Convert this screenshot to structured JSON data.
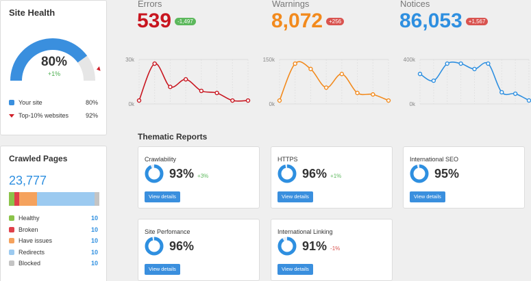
{
  "site_health": {
    "title": "Site Health",
    "score": {
      "value": 80,
      "label": "80%"
    },
    "change": "+1%",
    "legend": [
      {
        "name": "Your site",
        "value": {
          "value": 80,
          "label": "80%"
        },
        "color": "#3a8fde"
      },
      {
        "name": "Top-10% websites",
        "value": {
          "value": 92,
          "label": "92%"
        },
        "color": "#d0202a"
      }
    ]
  },
  "crawled_pages": {
    "title": "Crawled Pages",
    "total": "23,777",
    "items": [
      {
        "name": "Healthy",
        "count": 10,
        "share": 6,
        "color": "#8bc34a"
      },
      {
        "name": "Broken",
        "count": 10,
        "share": 5,
        "color": "#e0404a"
      },
      {
        "name": "Have issues",
        "count": 10,
        "share": 20,
        "color": "#f5a25d"
      },
      {
        "name": "Redirects",
        "count": 10,
        "share": 64,
        "color": "#9ccaf0"
      },
      {
        "name": "Blocked",
        "count": 10,
        "share": 5,
        "color": "#c4c4c4"
      }
    ]
  },
  "metrics": [
    {
      "label": "Errors",
      "value": "539",
      "change": "-1,497",
      "change_color": "#5cb85c",
      "color": "#c8151f",
      "chart": {
        "type": "line",
        "ylim": [
          0,
          30000
        ],
        "yticks": [
          {
            "value": 0,
            "label": "0k"
          },
          {
            "value": 30000,
            "label": "30k"
          }
        ],
        "values": [
          2300,
          27200,
          11500,
          16600,
          8800,
          7400,
          2300,
          2300
        ]
      }
    },
    {
      "label": "Warnings",
      "value": "8,072",
      "change": "+256",
      "change_color": "#d9534f",
      "color": "#f28a1d",
      "chart": {
        "type": "line",
        "ylim": [
          0,
          150000
        ],
        "yticks": [
          {
            "value": 0,
            "label": "0k"
          },
          {
            "value": 150000,
            "label": "150k"
          }
        ],
        "values": [
          11500,
          136000,
          118000,
          55000,
          101000,
          37000,
          32000,
          11500
        ]
      }
    },
    {
      "label": "Notices",
      "value": "86,053",
      "change": "+1,567",
      "change_color": "#d9534f",
      "color": "#2e8fe0",
      "chart": {
        "type": "line",
        "ylim": [
          0,
          400000
        ],
        "yticks": [
          {
            "value": 0,
            "label": "0k"
          },
          {
            "value": 400000,
            "label": "400k"
          }
        ],
        "values": [
          270000,
          209000,
          363000,
          363000,
          314000,
          363000,
          105000,
          92000,
          31000
        ]
      }
    }
  ],
  "thematic_reports": {
    "title": "Thematic Reports",
    "button_label": "View details",
    "items": [
      {
        "name": "Crawlability",
        "score": {
          "value": 93,
          "label": "93%"
        },
        "change": "+3%",
        "change_color": "#5cb85c"
      },
      {
        "name": "HTTPS",
        "score": {
          "value": 96,
          "label": "96%"
        },
        "change": "+1%",
        "change_color": "#5cb85c"
      },
      {
        "name": "International SEO",
        "score": {
          "value": 95,
          "label": "95%"
        }
      },
      {
        "name": "Site Perfomance",
        "score": {
          "value": 96,
          "label": "96%"
        }
      },
      {
        "name": "International Linking",
        "score": {
          "value": 91,
          "label": "91%"
        },
        "change": "-1%",
        "change_color": "#d9534f"
      }
    ]
  }
}
